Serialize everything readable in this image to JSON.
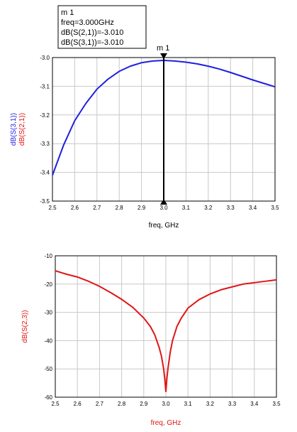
{
  "marker": {
    "name": "m1",
    "label": "m 1",
    "readout": [
      "m 1",
      "freq=3.000GHz",
      "dB(S(2,1))=-3.010",
      "dB(S(3,1))=-3.010"
    ]
  },
  "colors": {
    "series_blue": "#1f1fe0",
    "series_red": "#e01515",
    "grid": "#c8c8c8"
  },
  "chart_data": [
    {
      "type": "line",
      "xlabel": "freq, GHz",
      "ylabel_lines": [
        {
          "text": "dB(S(3,1))",
          "color": "#1f1fe0"
        },
        {
          "text": "dB(S(2,1))",
          "color": "#e01515"
        }
      ],
      "xlim": [
        2.5,
        3.5
      ],
      "ylim": [
        -3.5,
        -3.0
      ],
      "xticks": [
        "2.5",
        "2.6",
        "2.7",
        "2.8",
        "2.9",
        "3.0",
        "3.1",
        "3.2",
        "3.3",
        "3.4",
        "3.5"
      ],
      "yticks": [
        "-3.0",
        "-3.1",
        "-3.2",
        "-3.3",
        "-3.4",
        "-3.5"
      ],
      "grid": true,
      "marker_x": 3.0,
      "series": [
        {
          "color": "#1f1fe0",
          "x": [
            2.5,
            2.55,
            2.6,
            2.65,
            2.7,
            2.75,
            2.8,
            2.85,
            2.9,
            2.95,
            3.0,
            3.05,
            3.1,
            3.15,
            3.2,
            3.25,
            3.3,
            3.35,
            3.4,
            3.45,
            3.5
          ],
          "y": [
            -3.41,
            -3.305,
            -3.22,
            -3.16,
            -3.11,
            -3.075,
            -3.048,
            -3.03,
            -3.018,
            -3.012,
            -3.01,
            -3.012,
            -3.016,
            -3.022,
            -3.03,
            -3.04,
            -3.052,
            -3.065,
            -3.078,
            -3.09,
            -3.102
          ]
        }
      ]
    },
    {
      "type": "line",
      "xlabel": "freq, GHz",
      "ylabel_lines": [
        {
          "text": "dB(S(2,3))",
          "color": "#e01515"
        }
      ],
      "xlim": [
        2.5,
        3.5
      ],
      "ylim": [
        -60,
        -10
      ],
      "xticks": [
        "2.5",
        "2.6",
        "2.7",
        "2.8",
        "2.9",
        "3.0",
        "3.1",
        "3.2",
        "3.3",
        "3.4",
        "3.5"
      ],
      "yticks": [
        "-10",
        "-20",
        "-30",
        "-40",
        "-50",
        "-60"
      ],
      "grid": true,
      "series": [
        {
          "color": "#e01515",
          "x": [
            2.5,
            2.55,
            2.6,
            2.65,
            2.7,
            2.75,
            2.8,
            2.85,
            2.9,
            2.93,
            2.95,
            2.97,
            2.98,
            2.99,
            2.995,
            3.0,
            3.005,
            3.01,
            3.02,
            3.03,
            3.05,
            3.07,
            3.1,
            3.15,
            3.2,
            3.25,
            3.3,
            3.35,
            3.4,
            3.45,
            3.5
          ],
          "y": [
            -15.3,
            -16.5,
            -17.5,
            -19.0,
            -20.8,
            -23.0,
            -25.4,
            -28.2,
            -32.0,
            -35.0,
            -38.0,
            -42.5,
            -45.5,
            -50.0,
            -53.5,
            -58.0,
            -53.0,
            -49.5,
            -44.0,
            -40.0,
            -35.0,
            -32.0,
            -28.5,
            -25.5,
            -23.5,
            -22.0,
            -21.0,
            -20.0,
            -19.5,
            -19.0,
            -18.5
          ]
        }
      ]
    }
  ]
}
